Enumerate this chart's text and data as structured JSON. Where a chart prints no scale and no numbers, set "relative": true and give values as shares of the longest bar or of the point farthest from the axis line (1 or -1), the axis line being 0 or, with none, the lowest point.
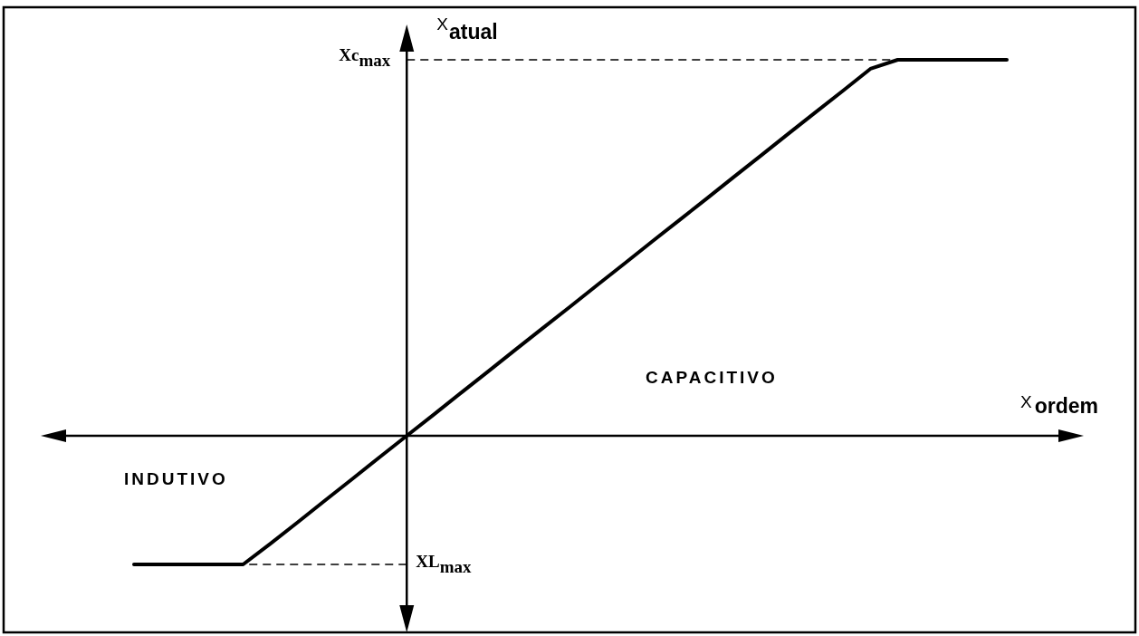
{
  "chart_data": {
    "type": "line",
    "relative": true,
    "xlabel": "X$_{ordem}$",
    "ylabel": "X$_{atual}$",
    "categories": [
      null,
      null,
      null,
      null,
      null,
      null,
      null,
      null,
      null,
      null,
      null,
      null,
      null,
      null,
      null,
      null,
      null,
      null,
      null,
      null,
      null,
      null,
      null,
      null,
      null,
      null,
      null,
      null,
      null,
      null,
      null,
      null,
      null
    ],
    "series": [
      {
        "color": "#000000",
        "values": [
          -0.342,
          -0.342,
          -0.342,
          -0.342,
          -0.342,
          -0.287,
          -0.23,
          -0.172,
          -0.115,
          -0.057,
          0,
          0.057,
          0.115,
          0.172,
          0.23,
          0.287,
          0.344,
          0.402,
          0.459,
          0.517,
          0.574,
          0.631,
          0.689,
          0.746,
          0.804,
          0.861,
          0.918,
          0.976,
          1,
          1,
          1,
          1,
          1
        ]
      }
    ],
    "line_style": "solid",
    "ref_lines": [
      {
        "axis": "y",
        "value": 1,
        "label": "Xc$_{max}$",
        "line_style": "dashed"
      },
      {
        "axis": "y",
        "value": -0.342,
        "label": "XL$_{max}$",
        "line_style": "dashed"
      }
    ],
    "annotations": [
      "CAPACITIVO",
      "INDUTIVO"
    ]
  }
}
